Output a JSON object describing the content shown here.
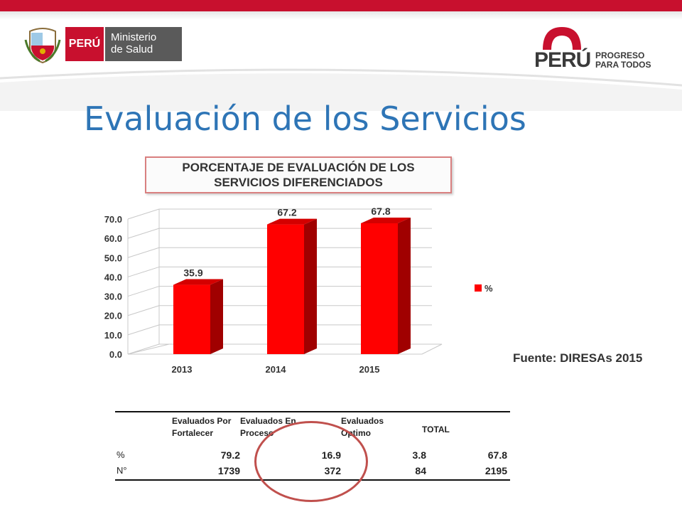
{
  "header": {
    "minsa_logo": {
      "country": "PERÚ",
      "line1": "Ministerio",
      "line2": "de Salud"
    },
    "ppt_logo": {
      "country": "PERÚ",
      "line1": "PROGRESO",
      "line2": "PARA TODOS"
    }
  },
  "slide": {
    "title": "Evaluación de los Servicios",
    "source": "Fuente: DIRESAs 2015"
  },
  "colors": {
    "accent_red": "#c8102e",
    "title_blue": "#2e75b6",
    "bar_red": "#ff0000",
    "ring": "#c0504d"
  },
  "chart_data": {
    "type": "bar",
    "title_line1": "PORCENTAJE DE EVALUACIÓN DE LOS",
    "title_line2": "SERVICIOS DIFERENCIADOS",
    "categories": [
      "2013",
      "2014",
      "2015"
    ],
    "series": [
      {
        "name": "%",
        "values": [
          35.9,
          67.2,
          67.8
        ]
      }
    ],
    "data_labels": [
      "35.9",
      "67.2",
      "67.8"
    ],
    "yticks": [
      "0.0",
      "10.0",
      "20.0",
      "30.0",
      "40.0",
      "50.0",
      "60.0",
      "70.0"
    ],
    "ylim": [
      0,
      70
    ],
    "grid": true,
    "legend": "right",
    "style": "3d"
  },
  "table": {
    "headers": [
      {
        "line1": "Evaluados Por",
        "line2": "Fortalecer"
      },
      {
        "line1": "Evaluados En",
        "line2": "Proceso"
      },
      {
        "line1": "Evaluados",
        "line2": "Optimo"
      },
      {
        "line1": "TOTAL",
        "line2": ""
      }
    ],
    "rows": [
      {
        "label": "%",
        "values": [
          "79.2",
          "16.9",
          "3.8",
          "67.8"
        ]
      },
      {
        "label": "N°",
        "values": [
          "1739",
          "372",
          "84",
          "2195"
        ]
      }
    ]
  }
}
